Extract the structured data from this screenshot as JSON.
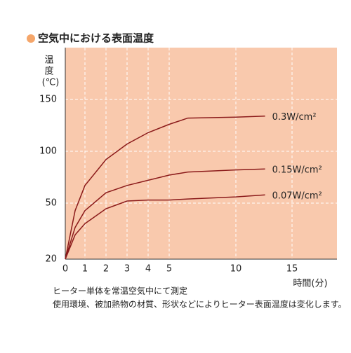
{
  "chart_data": {
    "type": "line",
    "title": "空気中における表面温度",
    "y_label": [
      "温",
      "度",
      "(℃)"
    ],
    "x_label": "時間(分)",
    "x": [
      0,
      0.5,
      1,
      2,
      3,
      4,
      5,
      6.4,
      10,
      12.6
    ],
    "series": [
      {
        "name": "0.3W/cm²",
        "color": "#8b1a1a",
        "values": [
          20,
          46,
          67,
          92,
          107,
          118,
          126,
          132,
          133,
          134
        ]
      },
      {
        "name": "0.15W/cm²",
        "color": "#8b1a1a",
        "values": [
          20,
          37,
          46,
          60,
          67,
          72,
          77,
          80,
          82,
          83
        ]
      },
      {
        "name": "0.07W/cm²",
        "color": "#8b1a1a",
        "values": [
          20,
          33,
          39,
          47,
          52,
          53,
          53,
          54,
          56,
          58
        ]
      }
    ],
    "xlim": [
      0,
      19
    ],
    "ylim": [
      20,
      200
    ],
    "xticks": [
      0,
      1,
      2,
      3,
      4,
      5,
      10,
      15
    ],
    "yticks": [
      20,
      50,
      100,
      150
    ],
    "grid": true,
    "background": "#f9c9ad",
    "notes": [
      "ヒーター単体を常温空気中にて測定",
      "使用環境、被加熱物の材質、形状などによりヒーター表面温度は変化します。"
    ]
  }
}
